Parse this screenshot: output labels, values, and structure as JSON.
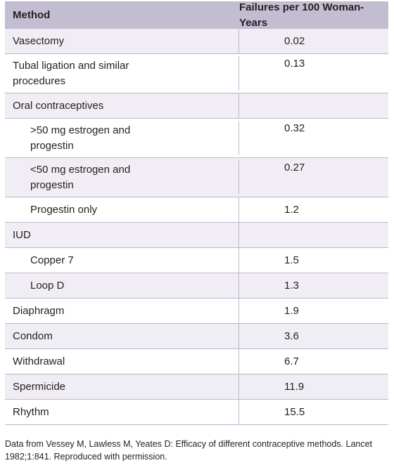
{
  "table": {
    "header": {
      "method": "Method",
      "failures": "Failures per 100 Woman-Years"
    },
    "rows": [
      {
        "method": "Vasectomy",
        "value": "0.02"
      },
      {
        "method": "Tubal ligation and similar procedures",
        "value": "0.13"
      },
      {
        "method": "Oral contraceptives",
        "value": ""
      },
      {
        "method": ">50 mg estrogen and progestin",
        "value": "0.32"
      },
      {
        "method": "<50 mg estrogen and progestin",
        "value": "0.27"
      },
      {
        "method": "Progestin only",
        "value": "1.2"
      },
      {
        "method": "IUD",
        "value": ""
      },
      {
        "method": "Copper 7",
        "value": "1.5"
      },
      {
        "method": "Loop D",
        "value": "1.3"
      },
      {
        "method": "Diaphragm",
        "value": "1.9"
      },
      {
        "method": "Condom",
        "value": "3.6"
      },
      {
        "method": "Withdrawal",
        "value": "6.7"
      },
      {
        "method": "Spermicide",
        "value": "11.9"
      },
      {
        "method": "Rhythm",
        "value": "15.5"
      }
    ]
  },
  "footnote": "Data from Vessey M, Lawless M, Yeates D: Efficacy of different contraceptive methods. Lancet 1982;1:841. Reproduced with permission."
}
